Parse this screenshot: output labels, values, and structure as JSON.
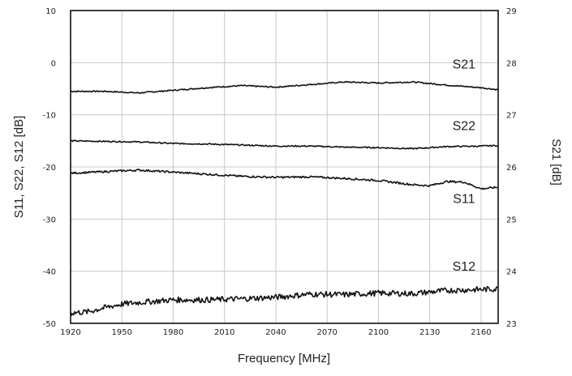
{
  "chart_data": {
    "type": "line",
    "xlabel": "Frequency [MHz]",
    "ylabel_left": "S11, S22, S12 [dB]",
    "ylabel_right": "S21 [dB]",
    "xlim": [
      1920,
      2170
    ],
    "ylim_left": [
      -50,
      10
    ],
    "ylim_right": [
      23,
      29
    ],
    "x_ticks": [
      "1920",
      "1950",
      "1980",
      "2010",
      "2040",
      "2070",
      "2100",
      "2130",
      "2160"
    ],
    "y_ticks_left": [
      "10",
      "0",
      "-10",
      "-20",
      "-30",
      "-40",
      "-50"
    ],
    "y_ticks_right": [
      "29",
      "28",
      "27",
      "26",
      "25",
      "24",
      "23"
    ],
    "grid": true,
    "series": [
      {
        "name": "S21",
        "axis": "right",
        "x": [
          1920,
          1940,
          1960,
          1980,
          2000,
          2020,
          2040,
          2060,
          2080,
          2100,
          2120,
          2140,
          2160,
          2170
        ],
        "y": [
          27.45,
          27.45,
          27.42,
          27.47,
          27.52,
          27.56,
          27.53,
          27.58,
          27.63,
          27.61,
          27.63,
          27.57,
          27.52,
          27.48
        ]
      },
      {
        "name": "S22",
        "axis": "left",
        "x": [
          1920,
          1940,
          1960,
          1980,
          2000,
          2020,
          2040,
          2060,
          2080,
          2100,
          2120,
          2140,
          2160,
          2170
        ],
        "y": [
          -15.0,
          -15.1,
          -15.2,
          -15.5,
          -15.6,
          -15.8,
          -16.0,
          -16.0,
          -16.2,
          -16.3,
          -16.5,
          -16.1,
          -16.0,
          -15.9
        ]
      },
      {
        "name": "S11",
        "axis": "left",
        "x": [
          1920,
          1940,
          1960,
          1980,
          2000,
          2020,
          2040,
          2060,
          2080,
          2100,
          2120,
          2130,
          2140,
          2150,
          2160,
          2170
        ],
        "y": [
          -21.2,
          -20.9,
          -20.6,
          -21.0,
          -21.4,
          -21.8,
          -22.0,
          -21.9,
          -22.2,
          -22.6,
          -23.4,
          -23.6,
          -22.8,
          -22.9,
          -24.2,
          -23.9
        ]
      },
      {
        "name": "S12",
        "axis": "left",
        "x": [
          1920,
          1930,
          1940,
          1950,
          1960,
          1980,
          2000,
          2020,
          2040,
          2060,
          2080,
          2100,
          2120,
          2140,
          2160,
          2170
        ],
        "y": [
          -48.0,
          -47.8,
          -47.0,
          -46.3,
          -46.0,
          -45.5,
          -45.5,
          -45.3,
          -45.0,
          -44.4,
          -44.5,
          -44.2,
          -44.3,
          -43.7,
          -43.5,
          -43.4
        ]
      }
    ]
  }
}
